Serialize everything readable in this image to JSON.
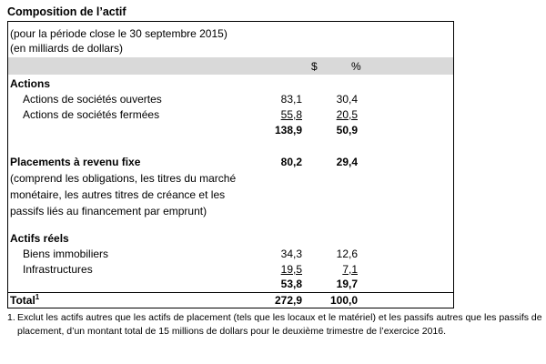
{
  "title": "Composition de l’actif",
  "period_line1": "(pour la période close le 30 septembre 2015)",
  "period_line2": "(en milliards de dollars)",
  "columns": {
    "dollar": "$",
    "percent": "%"
  },
  "actions": {
    "heading": "Actions",
    "rows": [
      {
        "label": "Actions de sociétés ouvertes",
        "amount": "83,1",
        "pct": "30,4"
      },
      {
        "label": "Actions de sociétés fermées",
        "amount": "55,8",
        "pct": "20,5"
      }
    ],
    "subtotal_amount": "138,9",
    "subtotal_pct": "50,9"
  },
  "fixed_income": {
    "heading": "Placements à revenu fixe",
    "amount": "80,2",
    "pct": "29,4",
    "desc_line1": "(comprend les obligations, les titres du marché",
    "desc_line2": "monétaire, les autres titres de créance et les",
    "desc_line3": "passifs liés au financement par emprunt)"
  },
  "real_assets": {
    "heading": "Actifs réels",
    "rows": [
      {
        "label": "Biens immobiliers",
        "amount": "34,3",
        "pct": "12,6"
      },
      {
        "label": "Infrastructures",
        "amount": "19,5",
        "pct": "7,1"
      }
    ],
    "subtotal_amount": "53,8",
    "subtotal_pct": "19,7"
  },
  "total": {
    "label": "Total",
    "marker": "1",
    "amount": "272,9",
    "pct": "100,0"
  },
  "footnote": {
    "number": "1.",
    "text": "Exclut les actifs autres que les actifs de placement (tels que les locaux et le matériel) et les passifs autres que les passifs de placement, d’un montant total de 15 millions de dollars pour le deuxième trimestre de l’exercice 2016."
  }
}
